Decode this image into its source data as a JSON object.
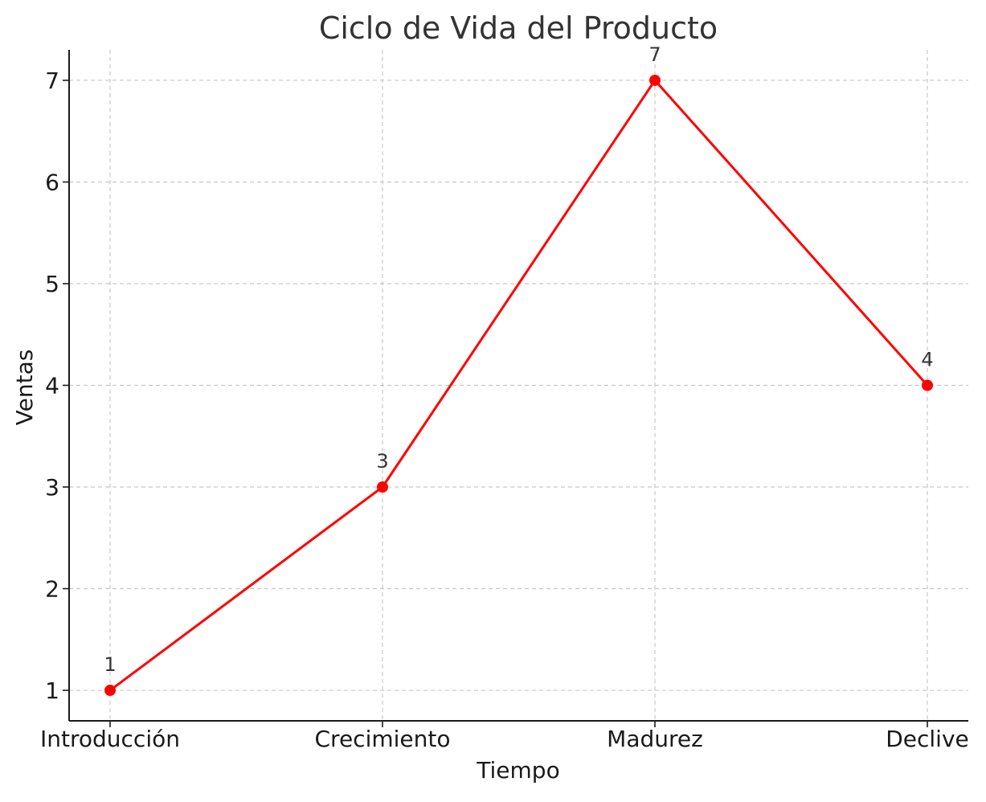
{
  "chart_data": {
    "type": "line",
    "title": "Ciclo de Vida del Producto",
    "xlabel": "Tiempo",
    "ylabel": "Ventas",
    "categories": [
      "Introducción",
      "Crecimiento",
      "Madurez",
      "Declive"
    ],
    "series": [
      {
        "values": [
          1,
          3,
          7,
          4
        ],
        "color": "#ff0000",
        "marker": "circle",
        "data_labels": [
          "1",
          "3",
          "7",
          "4"
        ]
      }
    ],
    "yticks": [
      1,
      2,
      3,
      4,
      5,
      6,
      7
    ],
    "ytick_labels": [
      "1",
      "2",
      "3",
      "4",
      "5",
      "6",
      "7"
    ],
    "ylim": [
      0.7,
      7.3
    ],
    "grid": true,
    "grid_style": "dashed",
    "grid_color": "#c8c8c8",
    "axis_color": "#1a1a1a"
  }
}
